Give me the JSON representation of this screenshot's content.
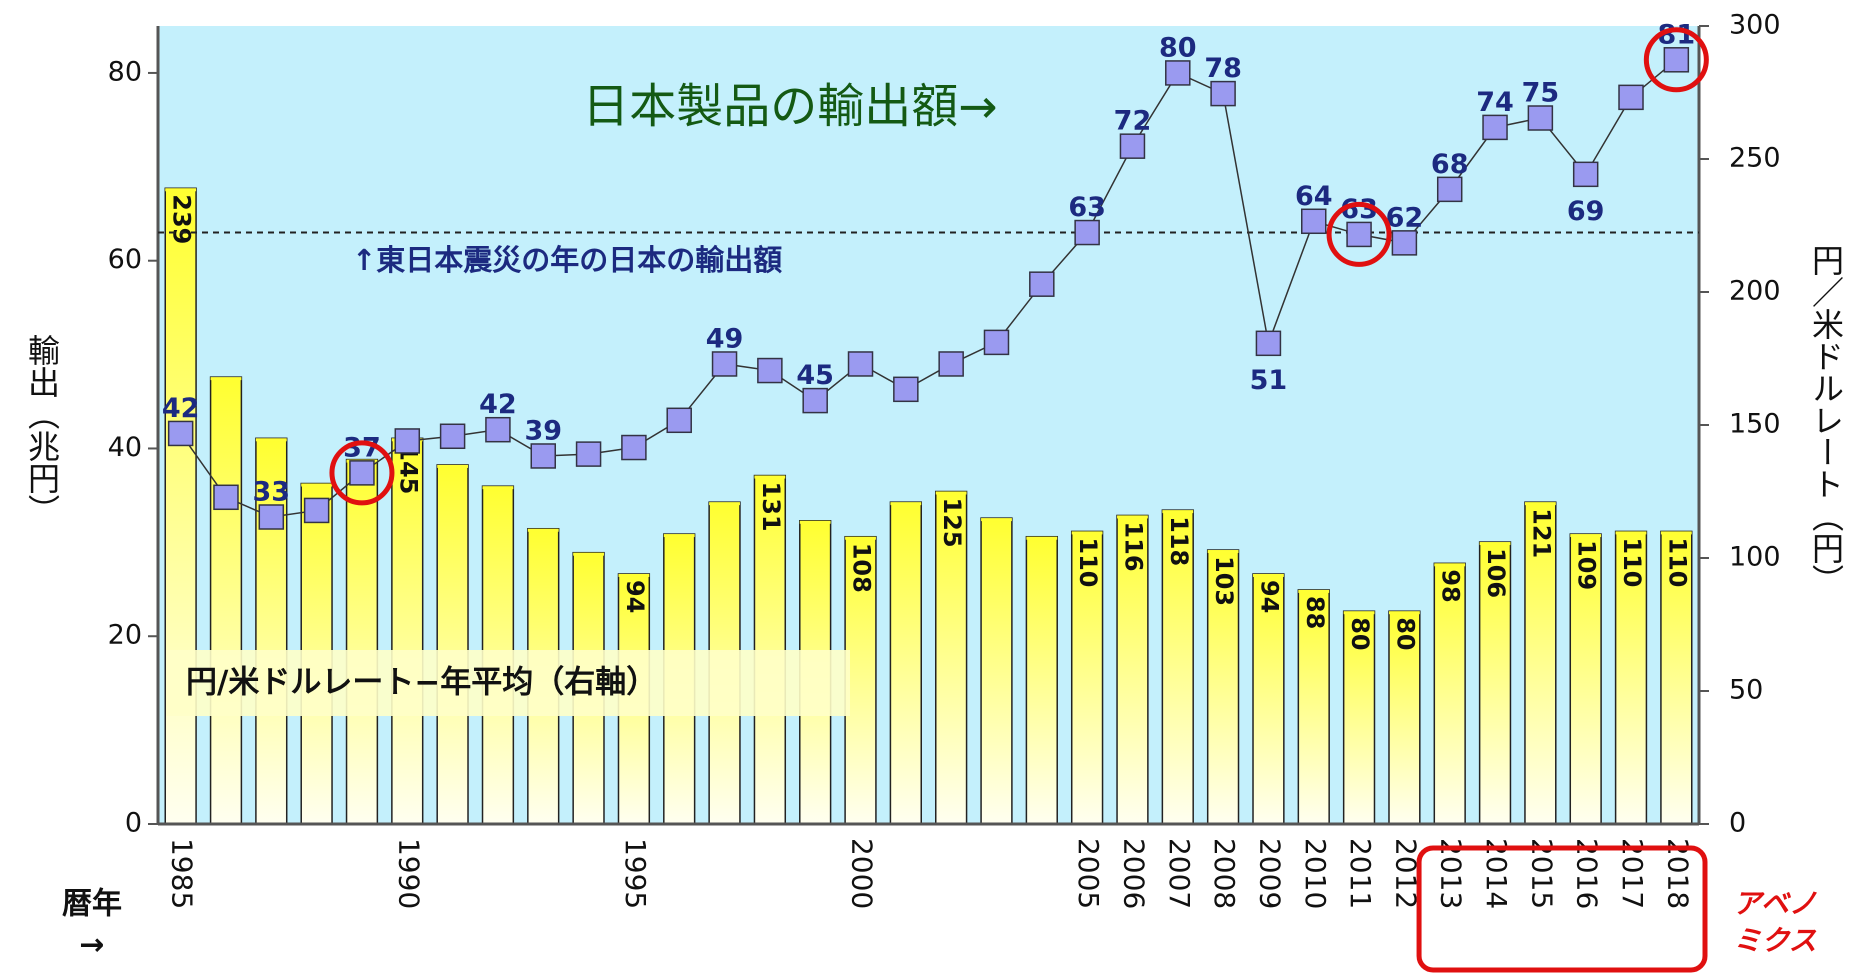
{
  "chart_data": {
    "type": "bar_line",
    "title": "日本製品の輸出額→",
    "annotation": "↑東日本震災の年の日本の輸出額",
    "reference_value": 63,
    "legend_text": "円/米ドルレート−年平均（右軸）",
    "y_label": "輸出（兆円）",
    "y2_label": "円／米ドルレート（円）",
    "x_label": [
      "暦年",
      "→"
    ],
    "side_note": [
      "アベノ",
      "ミクス"
    ],
    "categories": [
      "1985",
      null,
      null,
      null,
      null,
      "1990",
      null,
      null,
      null,
      null,
      "1995",
      null,
      null,
      null,
      null,
      "2000",
      null,
      null,
      null,
      null,
      "2005",
      "2006",
      "2007",
      "2008",
      "2009",
      "2010",
      "2011",
      "2012",
      "2013",
      "2014",
      "2015",
      "2016",
      "2017",
      "2018"
    ],
    "ylim": [
      0,
      85
    ],
    "yticks": [
      0,
      20,
      40,
      60,
      80
    ],
    "y2lim": [
      0,
      300
    ],
    "y2ticks": [
      0,
      50,
      100,
      150,
      200,
      250,
      300
    ],
    "highlight": [
      4,
      26,
      33
    ],
    "highlight_range": [
      28,
      33
    ],
    "series": [
      {
        "type": "bar",
        "axis": "y2",
        "color": "#ffff33",
        "values": [
          239,
          168,
          145,
          128,
          137,
          145,
          135,
          127,
          111,
          102,
          94,
          109,
          121,
          131,
          114,
          108,
          121,
          125,
          115,
          108,
          110,
          116,
          118,
          103,
          94,
          88,
          80,
          80,
          98,
          106,
          121,
          109,
          110,
          110
        ],
        "value_labels": [
          "239",
          null,
          null,
          null,
          null,
          "145",
          null,
          null,
          null,
          null,
          "94",
          null,
          null,
          "131",
          null,
          "108",
          null,
          "125",
          null,
          null,
          "110",
          "116",
          "118",
          "103",
          "94",
          "88",
          "80",
          "80",
          "98",
          "106",
          "121",
          "109",
          "110",
          "110"
        ]
      },
      {
        "type": "line",
        "axis": "y",
        "color": "#9a9af0",
        "values": [
          41.6,
          34.8,
          32.7,
          33.4,
          37.4,
          40.8,
          41.3,
          42,
          39.2,
          39.4,
          40.1,
          43,
          49,
          48.3,
          45.1,
          49,
          46.3,
          49,
          51.3,
          57.5,
          63,
          72.2,
          80,
          77.8,
          51.2,
          64.2,
          62.8,
          61.9,
          67.6,
          74.2,
          75.2,
          69.2,
          77.4,
          81.4
        ],
        "value_labels": [
          "42",
          null,
          "33",
          null,
          "37",
          null,
          null,
          "42",
          "39",
          null,
          null,
          null,
          "49",
          null,
          "45",
          null,
          null,
          null,
          null,
          null,
          "63",
          "72",
          "80",
          "78",
          "51",
          "64",
          "63",
          "62",
          "68",
          "74",
          "75",
          "69",
          null,
          "81"
        ]
      }
    ]
  }
}
